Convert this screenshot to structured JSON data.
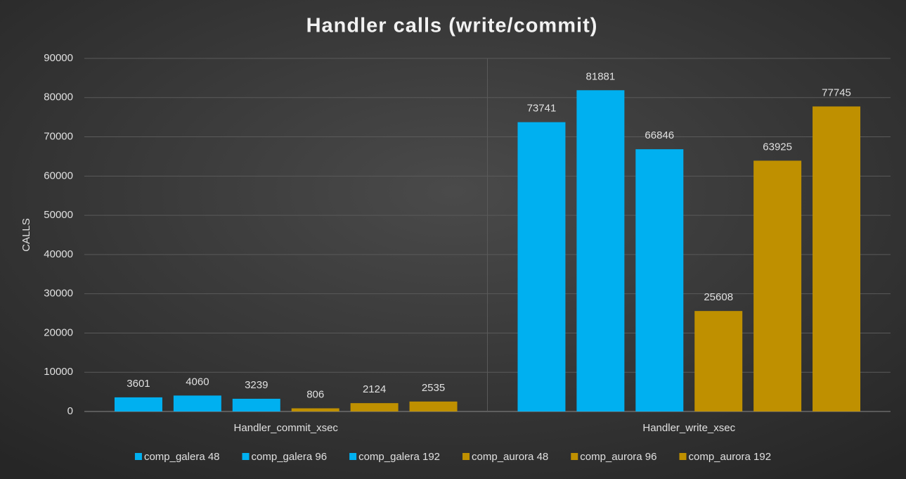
{
  "chart_data": {
    "type": "bar",
    "title": "Handler calls (write/commit)",
    "y_label": "CALLS",
    "categories": [
      "Handler_commit_xsec",
      "Handler_write_xsec"
    ],
    "series": [
      {
        "name": "comp_galera 48",
        "color": "#00b0f0",
        "values": [
          3601,
          73741
        ]
      },
      {
        "name": "comp_galera 96",
        "color": "#00b0f0",
        "values": [
          4060,
          81881
        ]
      },
      {
        "name": "comp_galera 192",
        "color": "#00b0f0",
        "values": [
          3239,
          66846
        ]
      },
      {
        "name": "comp_aurora 48",
        "color": "#bf9000",
        "values": [
          806,
          25608
        ]
      },
      {
        "name": "comp_aurora 96",
        "color": "#bf9000",
        "values": [
          2124,
          63925
        ]
      },
      {
        "name": "comp_aurora 192",
        "color": "#bf9000",
        "values": [
          2535,
          77745
        ]
      }
    ],
    "ylim": [
      0,
      90000
    ],
    "yticks": [
      0,
      10000,
      20000,
      30000,
      40000,
      50000,
      60000,
      70000,
      80000,
      90000
    ],
    "grid": true,
    "legend": "bottom"
  }
}
